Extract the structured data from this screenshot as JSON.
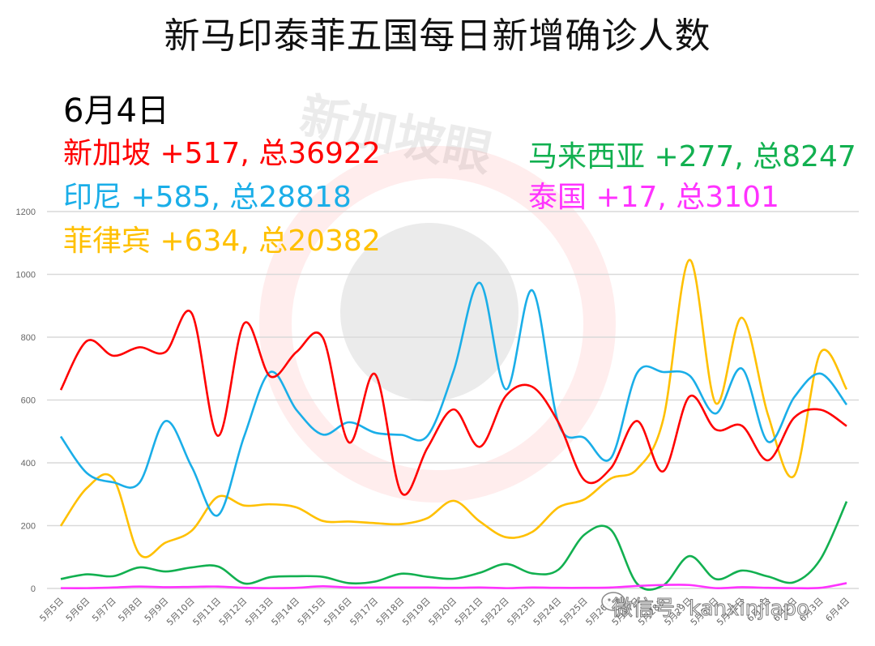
{
  "header": {
    "title": "新马印泰菲五国每日新增确诊人数",
    "date": "6月4日"
  },
  "summary": [
    {
      "country": "新加坡",
      "text": "新加坡 +517, 总36922",
      "new": 517,
      "total": 36922,
      "color": "#ff0000"
    },
    {
      "country": "印尼",
      "text": "印尼 +585, 总28818",
      "new": 585,
      "total": 28818,
      "color": "#1aaee8"
    },
    {
      "country": "菲律宾",
      "text": "菲律宾 +634, 总20382",
      "new": 634,
      "total": 20382,
      "color": "#ffc000"
    },
    {
      "country": "马来西亚",
      "text": "马来西亚 +277, 总8247",
      "new": 277,
      "total": 8247,
      "color": "#12b050"
    },
    {
      "country": "泰国",
      "text": "泰国 +17, 总3101",
      "new": 17,
      "total": 3101,
      "color": "#ff33ff"
    }
  ],
  "watermark": {
    "text": "新加坡眼",
    "wechat": "微信号: kanxinjiapo"
  },
  "chart_data": {
    "type": "line",
    "title": "新马印泰菲五国每日新增确诊人数",
    "xlabel": "",
    "ylabel": "",
    "ylim": [
      0,
      1200
    ],
    "yticks": [
      0,
      200,
      400,
      600,
      800,
      1000,
      1200
    ],
    "grid": true,
    "legend_position": "top (inline text)",
    "categories": [
      "5月5日",
      "5月6日",
      "5月7日",
      "5月8日",
      "5月9日",
      "5月10日",
      "5月11日",
      "5月12日",
      "5月13日",
      "5月14日",
      "5月15日",
      "5月16日",
      "5月17日",
      "5月18日",
      "5月19日",
      "5月20日",
      "5月21日",
      "5月22日",
      "5月23日",
      "5月24日",
      "5月25日",
      "5月26日",
      "5月27日",
      "5月28日",
      "5月29日",
      "5月30日",
      "5月31日",
      "6月1日",
      "6月2日",
      "6月3日",
      "6月4日"
    ],
    "series": [
      {
        "name": "新加坡",
        "color": "#ff0000",
        "values": [
          632,
          788,
          741,
          768,
          753,
          876,
          486,
          844,
          675,
          753,
          799,
          465,
          682,
          305,
          448,
          570,
          451,
          614,
          642,
          528,
          344,
          383,
          533,
          373,
          611,
          506,
          518,
          408,
          544,
          569,
          517
        ]
      },
      {
        "name": "印尼",
        "color": "#1aaee8",
        "values": [
          484,
          367,
          338,
          336,
          533,
          387,
          233,
          484,
          689,
          568,
          490,
          529,
          496,
          489,
          486,
          693,
          973,
          634,
          949,
          526,
          479,
          415,
          686,
          689,
          678,
          557,
          700,
          467,
          609,
          684,
          585
        ]
      },
      {
        "name": "菲律宾",
        "color": "#ffc000",
        "values": [
          199,
          320,
          350,
          110,
          146,
          184,
          292,
          264,
          268,
          258,
          215,
          213,
          208,
          205,
          224,
          279,
          213,
          163,
          180,
          258,
          284,
          350,
          380,
          539,
          1046,
          590,
          862,
          552,
          359,
          751,
          634
        ]
      },
      {
        "name": "马来西亚",
        "color": "#12b050",
        "values": [
          30,
          45,
          39,
          67,
          54,
          67,
          70,
          16,
          36,
          39,
          37,
          17,
          22,
          47,
          37,
          31,
          50,
          78,
          48,
          60,
          172,
          187,
          15,
          10,
          103,
          30,
          57,
          38,
          20,
          93,
          277
        ]
      },
      {
        "name": "泰国",
        "color": "#ff33ff",
        "values": [
          1,
          1,
          3,
          6,
          4,
          5,
          6,
          2,
          1,
          2,
          7,
          3,
          3,
          3,
          3,
          2,
          3,
          1,
          3,
          2,
          2,
          3,
          8,
          11,
          11,
          1,
          4,
          2,
          1,
          2,
          17
        ]
      }
    ]
  }
}
